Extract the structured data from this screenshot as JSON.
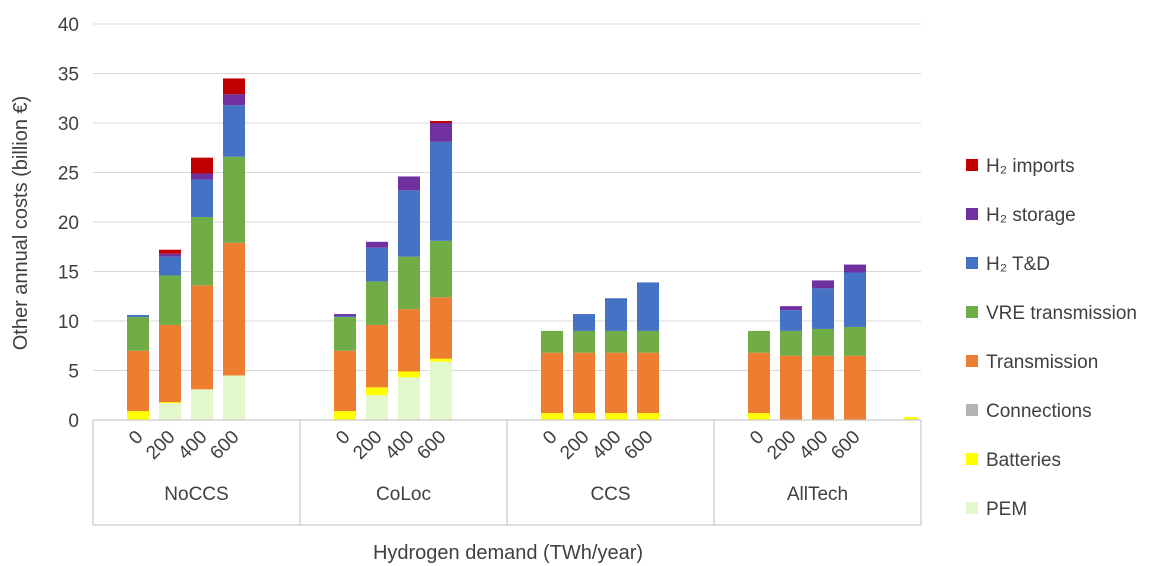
{
  "chart_data": {
    "type": "bar",
    "stacked": true,
    "title": "",
    "ylabel": "Other annual costs (billion €)",
    "xlabel": "Hydrogen demand (TWh/year)",
    "ylim": [
      0,
      40
    ],
    "yticks": [
      0,
      5,
      10,
      15,
      20,
      25,
      30,
      35,
      40
    ],
    "grid": "horizontal",
    "legend_position": "right",
    "groups": [
      "NoCCS",
      "CoLoc",
      "CCS",
      "AllTech"
    ],
    "categories": [
      "0",
      "200",
      "400",
      "600"
    ],
    "extra_bar": {
      "name": "Batteries",
      "value": 0.3
    },
    "series": [
      {
        "name": "PEM",
        "color": "#e2f7cc",
        "values": [
          [
            0,
            1.7,
            3.1,
            4.5
          ],
          [
            0,
            2.5,
            4.3,
            5.9
          ],
          [
            0,
            0,
            0,
            0
          ],
          [
            0,
            0,
            0,
            0
          ]
        ]
      },
      {
        "name": "Batteries",
        "color": "#ffff00",
        "values": [
          [
            0.9,
            0.1,
            0,
            0
          ],
          [
            0.9,
            0.8,
            0.6,
            0.3
          ],
          [
            0.7,
            0.7,
            0.7,
            0.7
          ],
          [
            0.7,
            0,
            0,
            0
          ]
        ]
      },
      {
        "name": "Connections",
        "color": "#b4b4b4",
        "values": [
          [
            0,
            0,
            0,
            0
          ],
          [
            0,
            0,
            0,
            0
          ],
          [
            0,
            0,
            0,
            0
          ],
          [
            0,
            0,
            0,
            0
          ]
        ]
      },
      {
        "name": "Transmission",
        "color": "#ed7d31",
        "values": [
          [
            6.1,
            7.8,
            10.5,
            13.4
          ],
          [
            6.1,
            6.3,
            6.3,
            6.2
          ],
          [
            6.1,
            6.1,
            6.1,
            6.1
          ],
          [
            6.1,
            6.5,
            6.5,
            6.5
          ]
        ]
      },
      {
        "name": "VRE transmission",
        "color": "#70ad47",
        "values": [
          [
            3.4,
            5.0,
            6.9,
            8.7
          ],
          [
            3.4,
            4.4,
            5.3,
            5.7
          ],
          [
            2.2,
            2.2,
            2.2,
            2.2
          ],
          [
            2.2,
            2.5,
            2.7,
            2.9
          ]
        ]
      },
      {
        "name": "H₂ T&D",
        "color": "#4472c4",
        "values": [
          [
            0.2,
            1.9,
            3.8,
            5.2
          ],
          [
            0.1,
            3.4,
            6.7,
            10.0
          ],
          [
            0,
            1.7,
            3.3,
            4.9
          ],
          [
            0,
            2.1,
            4.1,
            5.5
          ]
        ]
      },
      {
        "name": "H₂ storage",
        "color": "#7030a0",
        "values": [
          [
            0,
            0.3,
            0.6,
            1.1
          ],
          [
            0.2,
            0.6,
            1.4,
            1.9
          ],
          [
            0,
            0,
            0,
            0
          ],
          [
            0,
            0.4,
            0.8,
            0.8
          ]
        ]
      },
      {
        "name": "H₂ imports",
        "color": "#c00000",
        "values": [
          [
            0,
            0.4,
            1.6,
            1.6
          ],
          [
            0,
            0,
            0,
            0.2
          ],
          [
            0,
            0,
            0,
            0
          ],
          [
            0,
            0,
            0,
            0
          ]
        ]
      }
    ],
    "legend_order": [
      "H₂ imports",
      "H₂ storage",
      "H₂ T&D",
      "VRE transmission",
      "Transmission",
      "Connections",
      "Batteries",
      "PEM"
    ]
  }
}
